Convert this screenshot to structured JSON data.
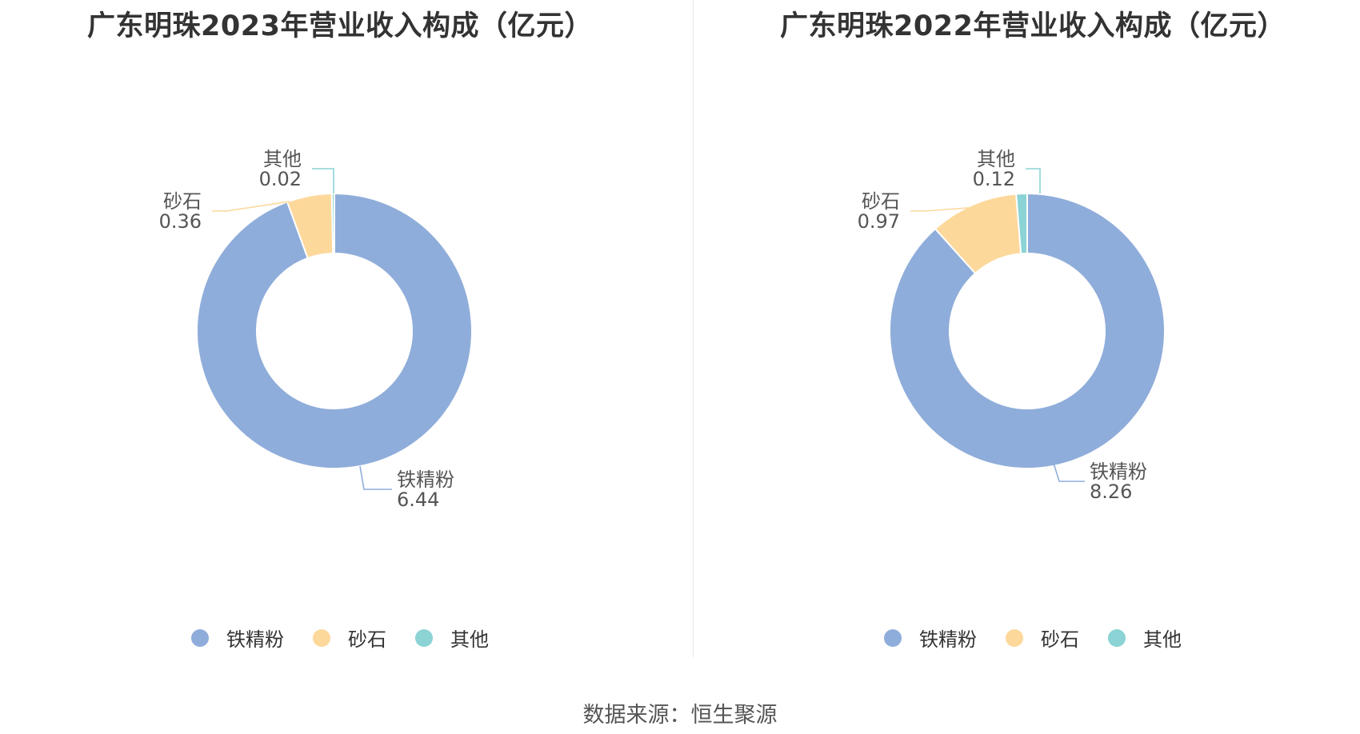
{
  "colors": [
    "#8fadda",
    "#fdd89b",
    "#8bd3d5"
  ],
  "source": "数据来源：恒生聚源",
  "chart_data": [
    {
      "type": "pie",
      "title": "广东明珠2023年营业收入构成（亿元）",
      "categories": [
        "铁精粉",
        "砂石",
        "其他"
      ],
      "values": [
        6.44,
        0.36,
        0.02
      ],
      "value_labels": [
        "6.44",
        "0.36",
        "0.02"
      ],
      "legend": "bottom"
    },
    {
      "type": "pie",
      "title": "广东明珠2022年营业收入构成（亿元）",
      "categories": [
        "铁精粉",
        "砂石",
        "其他"
      ],
      "values": [
        8.26,
        0.97,
        0.12
      ],
      "value_labels": [
        "8.26",
        "0.97",
        "0.12"
      ],
      "legend": "bottom"
    }
  ]
}
